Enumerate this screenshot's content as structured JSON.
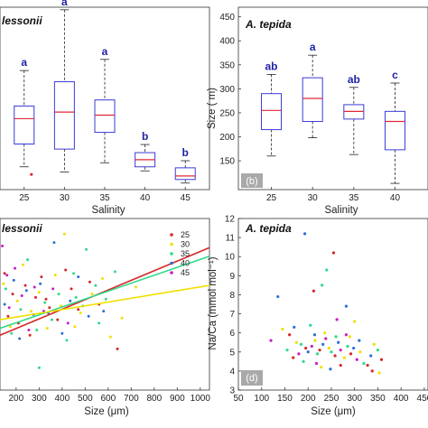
{
  "chart_data": [
    {
      "id": "a",
      "type": "box",
      "title": "lessonii",
      "panel_label": "",
      "xlabel": "Salinity",
      "ylabel": "",
      "categories": [
        "25",
        "30",
        "35",
        "40",
        "45"
      ],
      "boxes": [
        {
          "x": "25",
          "whisker_low": 160,
          "q1": 205,
          "median": 255,
          "q3": 280,
          "whisker_high": 350
        },
        {
          "x": "30",
          "whisker_low": 150,
          "q1": 195,
          "median": 268,
          "q3": 328,
          "whisker_high": 470
        },
        {
          "x": "35",
          "whisker_low": 168,
          "q1": 228,
          "median": 262,
          "q3": 292,
          "whisker_high": 372
        },
        {
          "x": "40",
          "whisker_low": 152,
          "q1": 160,
          "median": 174,
          "q3": 188,
          "whisker_high": 204
        },
        {
          "x": "45",
          "whisker_low": 128,
          "q1": 135,
          "median": 142,
          "q3": 158,
          "whisker_high": 172
        }
      ],
      "significance_letters": [
        "a",
        "a",
        "a",
        "b",
        "b"
      ],
      "outliers": [
        {
          "x": "25",
          "y": 145
        }
      ],
      "xlim": [
        22,
        48
      ],
      "ylim": [
        115,
        475
      ]
    },
    {
      "id": "b",
      "type": "box",
      "title": "A. tepida",
      "panel_label": "(b)",
      "xlabel": "Salinity",
      "ylabel": "Size (  m)",
      "categories": [
        "25",
        "30",
        "35",
        "40"
      ],
      "boxes": [
        {
          "x": "25",
          "whisker_low": 160,
          "q1": 215,
          "median": 255,
          "q3": 290,
          "whisker_high": 330
        },
        {
          "x": "30",
          "whisker_low": 198,
          "q1": 232,
          "median": 280,
          "q3": 323,
          "whisker_high": 370
        },
        {
          "x": "35",
          "whisker_low": 163,
          "q1": 237,
          "median": 253,
          "q3": 267,
          "whisker_high": 303
        },
        {
          "x": "40",
          "whisker_low": 103,
          "q1": 173,
          "median": 232,
          "q3": 253,
          "whisker_high": 312
        }
      ],
      "significance_letters": [
        "ab",
        "a",
        "ab",
        "c"
      ],
      "yticks": [
        150,
        200,
        250,
        300,
        350,
        400,
        450
      ],
      "xlim": [
        21,
        44
      ],
      "ylim": [
        90,
        470
      ]
    },
    {
      "id": "c",
      "type": "scatter",
      "title": "lessonii",
      "xlabel": "Size (μm)",
      "ylabel": "",
      "xticks": [
        200,
        300,
        400,
        500,
        600,
        700,
        800,
        900,
        1000
      ],
      "xlim": [
        130,
        1040
      ],
      "ylim": [
        0,
        10
      ],
      "legend": {
        "position": "top-right",
        "entries": [
          "25",
          "30",
          "35",
          "40",
          "45"
        ]
      },
      "series_colors": {
        "25": "#d62728",
        "30": "#f0e000",
        "35": "#2fd98a",
        "40": "#2a6fd6",
        "45": "#c71ec7"
      },
      "points": [
        {
          "s": "25",
          "x": 150,
          "y": 6.8
        },
        {
          "s": "25",
          "x": 165,
          "y": 4.3
        },
        {
          "s": "25",
          "x": 185,
          "y": 5.6
        },
        {
          "s": "25",
          "x": 210,
          "y": 3.9
        },
        {
          "s": "25",
          "x": 240,
          "y": 6.1
        },
        {
          "s": "25",
          "x": 260,
          "y": 3.2
        },
        {
          "s": "25",
          "x": 285,
          "y": 5.4
        },
        {
          "s": "25",
          "x": 310,
          "y": 6.6
        },
        {
          "s": "25",
          "x": 345,
          "y": 4.8
        },
        {
          "s": "25",
          "x": 380,
          "y": 4.1
        },
        {
          "s": "25",
          "x": 440,
          "y": 5.9
        },
        {
          "s": "25",
          "x": 470,
          "y": 4.7
        },
        {
          "s": "25",
          "x": 520,
          "y": 6.3
        },
        {
          "s": "25",
          "x": 560,
          "y": 5.0
        },
        {
          "s": "25",
          "x": 640,
          "y": 2.4
        },
        {
          "s": "25",
          "x": 330,
          "y": 5.3
        },
        {
          "s": "25",
          "x": 415,
          "y": 7.0
        },
        {
          "s": "30",
          "x": 145,
          "y": 6.2
        },
        {
          "s": "30",
          "x": 175,
          "y": 3.7
        },
        {
          "s": "30",
          "x": 205,
          "y": 5.2
        },
        {
          "s": "30",
          "x": 230,
          "y": 7.3
        },
        {
          "s": "30",
          "x": 265,
          "y": 4.6
        },
        {
          "s": "30",
          "x": 300,
          "y": 5.7
        },
        {
          "s": "30",
          "x": 335,
          "y": 3.6
        },
        {
          "s": "30",
          "x": 370,
          "y": 6.7
        },
        {
          "s": "30",
          "x": 410,
          "y": 9.1
        },
        {
          "s": "30",
          "x": 455,
          "y": 3.7
        },
        {
          "s": "30",
          "x": 480,
          "y": 4.5
        },
        {
          "s": "30",
          "x": 530,
          "y": 5.6
        },
        {
          "s": "30",
          "x": 575,
          "y": 6.5
        },
        {
          "s": "30",
          "x": 610,
          "y": 3.1
        },
        {
          "s": "30",
          "x": 660,
          "y": 4.2
        },
        {
          "s": "30",
          "x": 720,
          "y": 6.0
        },
        {
          "s": "30",
          "x": 395,
          "y": 4.9
        },
        {
          "s": "35",
          "x": 155,
          "y": 5.9
        },
        {
          "s": "35",
          "x": 180,
          "y": 3.3
        },
        {
          "s": "35",
          "x": 220,
          "y": 4.7
        },
        {
          "s": "35",
          "x": 250,
          "y": 7.6
        },
        {
          "s": "35",
          "x": 290,
          "y": 3.5
        },
        {
          "s": "35",
          "x": 325,
          "y": 5.1
        },
        {
          "s": "35",
          "x": 355,
          "y": 4.1
        },
        {
          "s": "35",
          "x": 385,
          "y": 5.6
        },
        {
          "s": "35",
          "x": 420,
          "y": 2.9
        },
        {
          "s": "35",
          "x": 450,
          "y": 6.8
        },
        {
          "s": "35",
          "x": 490,
          "y": 4.9
        },
        {
          "s": "35",
          "x": 505,
          "y": 8.2
        },
        {
          "s": "35",
          "x": 545,
          "y": 6.1
        },
        {
          "s": "35",
          "x": 590,
          "y": 5.3
        },
        {
          "s": "35",
          "x": 630,
          "y": 6.9
        },
        {
          "s": "35",
          "x": 300,
          "y": 1.3
        },
        {
          "s": "35",
          "x": 460,
          "y": 5.4
        },
        {
          "s": "35",
          "x": 560,
          "y": 3.9
        },
        {
          "s": "40",
          "x": 150,
          "y": 5.0
        },
        {
          "s": "40",
          "x": 190,
          "y": 6.4
        },
        {
          "s": "40",
          "x": 215,
          "y": 3.0
        },
        {
          "s": "40",
          "x": 245,
          "y": 5.8
        },
        {
          "s": "40",
          "x": 275,
          "y": 4.4
        },
        {
          "s": "40",
          "x": 305,
          "y": 6.2
        },
        {
          "s": "40",
          "x": 340,
          "y": 4.5
        },
        {
          "s": "40",
          "x": 365,
          "y": 8.6
        },
        {
          "s": "40",
          "x": 400,
          "y": 3.3
        },
        {
          "s": "40",
          "x": 435,
          "y": 5.2
        },
        {
          "s": "40",
          "x": 470,
          "y": 6.6
        },
        {
          "s": "40",
          "x": 515,
          "y": 4.3
        },
        {
          "s": "40",
          "x": 580,
          "y": 4.6
        },
        {
          "s": "45",
          "x": 140,
          "y": 8.4
        },
        {
          "s": "45",
          "x": 160,
          "y": 6.7
        },
        {
          "s": "45",
          "x": 170,
          "y": 4.8
        },
        {
          "s": "45",
          "x": 195,
          "y": 7.1
        },
        {
          "s": "45",
          "x": 225,
          "y": 5.5
        },
        {
          "s": "45",
          "x": 255,
          "y": 3.5
        },
        {
          "s": "45",
          "x": 280,
          "y": 6.0
        },
        {
          "s": "45",
          "x": 320,
          "y": 4.6
        },
        {
          "s": "45",
          "x": 360,
          "y": 5.9
        },
        {
          "s": "45",
          "x": 425,
          "y": 3.9
        }
      ],
      "fits": [
        {
          "s": "25",
          "x": [
            130,
            1040
          ],
          "y": [
            3.2,
            8.3
          ]
        },
        {
          "s": "35",
          "x": [
            130,
            1040
          ],
          "y": [
            3.6,
            7.8
          ]
        },
        {
          "s": "30",
          "x": [
            130,
            1040
          ],
          "y": [
            4.1,
            6.1
          ]
        }
      ]
    },
    {
      "id": "d",
      "type": "scatter",
      "title": "A. tepida",
      "panel_label": "(d)",
      "xlabel": "Size (μm)",
      "ylabel": "Na/Ca (mmol mol⁻¹)",
      "xticks": [
        50,
        100,
        150,
        200,
        250,
        300,
        350,
        400,
        450
      ],
      "yticks": [
        3,
        4,
        5,
        6,
        7,
        8,
        9,
        10,
        11,
        12
      ],
      "xlim": [
        50,
        458
      ],
      "ylim": [
        3,
        12
      ],
      "series_colors": {
        "25": "#d62728",
        "30": "#f0e000",
        "35": "#2fd98a",
        "40": "#2a6fd6",
        "45": "#c71ec7"
      },
      "points": [
        {
          "s": "40",
          "x": 193,
          "y": 11.2
        },
        {
          "s": "25",
          "x": 255,
          "y": 10.2
        },
        {
          "s": "35",
          "x": 240,
          "y": 9.3
        },
        {
          "s": "35",
          "x": 230,
          "y": 8.5
        },
        {
          "s": "25",
          "x": 212,
          "y": 8.2
        },
        {
          "s": "40",
          "x": 135,
          "y": 7.9
        },
        {
          "s": "40",
          "x": 282,
          "y": 7.4
        },
        {
          "s": "45",
          "x": 262,
          "y": 6.7
        },
        {
          "s": "30",
          "x": 300,
          "y": 6.6
        },
        {
          "s": "30",
          "x": 145,
          "y": 6.2
        },
        {
          "s": "35",
          "x": 205,
          "y": 6.4
        },
        {
          "s": "40",
          "x": 170,
          "y": 6.3
        },
        {
          "s": "25",
          "x": 160,
          "y": 5.9
        },
        {
          "s": "45",
          "x": 120,
          "y": 5.6
        },
        {
          "s": "30",
          "x": 175,
          "y": 5.5
        },
        {
          "s": "35",
          "x": 185,
          "y": 5.4
        },
        {
          "s": "25",
          "x": 195,
          "y": 5.2
        },
        {
          "s": "40",
          "x": 200,
          "y": 5.0
        },
        {
          "s": "45",
          "x": 208,
          "y": 5.3
        },
        {
          "s": "30",
          "x": 215,
          "y": 5.6
        },
        {
          "s": "35",
          "x": 220,
          "y": 4.9
        },
        {
          "s": "25",
          "x": 225,
          "y": 5.1
        },
        {
          "s": "40",
          "x": 232,
          "y": 5.4
        },
        {
          "s": "45",
          "x": 238,
          "y": 5.7
        },
        {
          "s": "30",
          "x": 245,
          "y": 5.2
        },
        {
          "s": "35",
          "x": 250,
          "y": 5.0
        },
        {
          "s": "25",
          "x": 258,
          "y": 4.8
        },
        {
          "s": "40",
          "x": 265,
          "y": 5.5
        },
        {
          "s": "45",
          "x": 270,
          "y": 5.1
        },
        {
          "s": "30",
          "x": 278,
          "y": 4.7
        },
        {
          "s": "35",
          "x": 285,
          "y": 5.3
        },
        {
          "s": "25",
          "x": 292,
          "y": 4.9
        },
        {
          "s": "40",
          "x": 298,
          "y": 5.2
        },
        {
          "s": "45",
          "x": 305,
          "y": 4.6
        },
        {
          "s": "30",
          "x": 312,
          "y": 5.0
        },
        {
          "s": "35",
          "x": 320,
          "y": 4.4
        },
        {
          "s": "25",
          "x": 328,
          "y": 4.3
        },
        {
          "s": "40",
          "x": 335,
          "y": 4.8
        },
        {
          "s": "30",
          "x": 342,
          "y": 5.4
        },
        {
          "s": "35",
          "x": 350,
          "y": 5.1
        },
        {
          "s": "25",
          "x": 358,
          "y": 4.6
        },
        {
          "s": "30",
          "x": 353,
          "y": 3.9
        },
        {
          "s": "25",
          "x": 338,
          "y": 4.0
        },
        {
          "s": "35",
          "x": 190,
          "y": 4.5
        },
        {
          "s": "30",
          "x": 228,
          "y": 4.2
        },
        {
          "s": "40",
          "x": 248,
          "y": 4.1
        },
        {
          "s": "45",
          "x": 218,
          "y": 4.4
        },
        {
          "s": "25",
          "x": 270,
          "y": 4.3
        },
        {
          "s": "35",
          "x": 260,
          "y": 5.8
        },
        {
          "s": "30",
          "x": 236,
          "y": 6.0
        },
        {
          "s": "40",
          "x": 214,
          "y": 5.9
        },
        {
          "s": "45",
          "x": 180,
          "y": 4.9
        },
        {
          "s": "25",
          "x": 168,
          "y": 4.7
        },
        {
          "s": "35",
          "x": 155,
          "y": 5.1
        },
        {
          "s": "30",
          "x": 290,
          "y": 5.8
        },
        {
          "s": "45",
          "x": 282,
          "y": 5.9
        },
        {
          "s": "40",
          "x": 310,
          "y": 5.6
        }
      ]
    }
  ]
}
